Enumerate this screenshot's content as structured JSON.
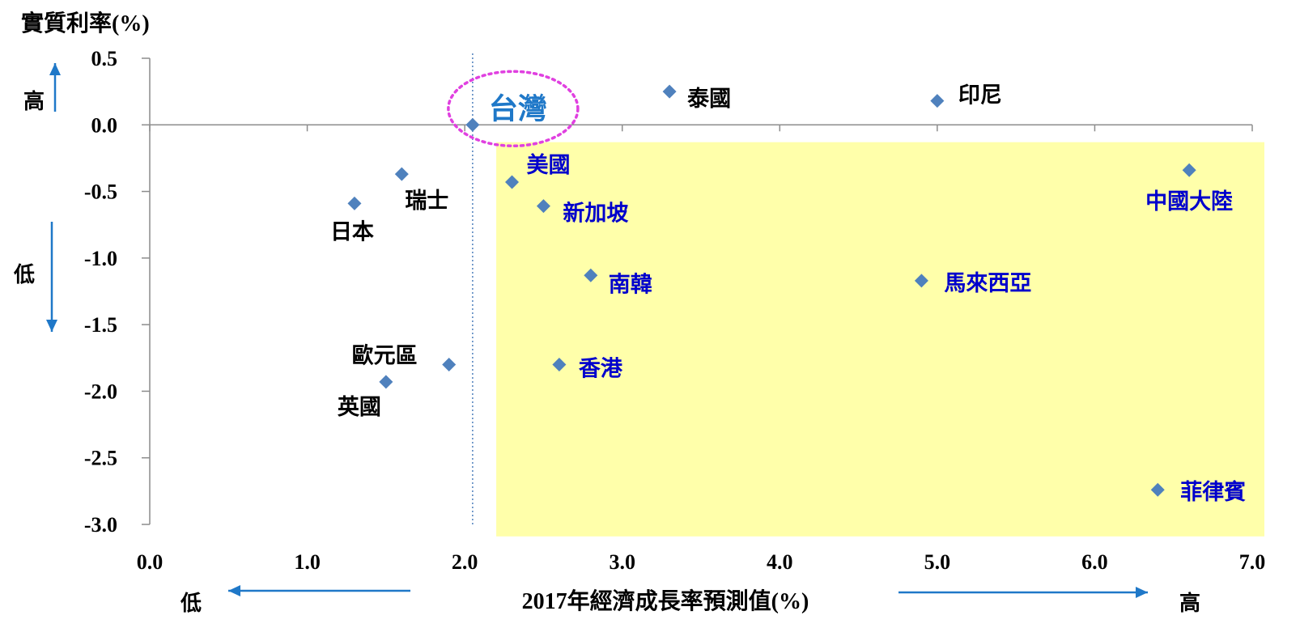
{
  "chart_data": {
    "type": "scatter",
    "title": "",
    "xlabel": "2017年經濟成長率預測值(%)",
    "ylabel": "實質利率(%)",
    "xlim": [
      0,
      7
    ],
    "ylim": [
      -3,
      0.5
    ],
    "xticks": [
      "0.0",
      "1.0",
      "2.0",
      "3.0",
      "4.0",
      "5.0",
      "6.0",
      "7.0"
    ],
    "yticks": [
      "0.5",
      "0.0",
      "-0.5",
      "-1.0",
      "-1.5",
      "-2.0",
      "-2.5",
      "-3.0"
    ],
    "grid": false,
    "reference_line_x": 2.05,
    "highlight_region": {
      "x": [
        2.2,
        7.1
      ],
      "y": [
        -3.09,
        -0.13
      ],
      "color": "#FFFFAA"
    },
    "marker_color": "#4F81BD",
    "points": [
      {
        "label": "台灣",
        "x": 2.05,
        "y": 0.0,
        "color": "#1F78C8",
        "highlight": true
      },
      {
        "label": "泰國",
        "x": 3.3,
        "y": 0.25,
        "color": "#000000"
      },
      {
        "label": "印尼",
        "x": 5.0,
        "y": 0.18,
        "color": "#000000"
      },
      {
        "label": "瑞士",
        "x": 1.6,
        "y": -0.37,
        "color": "#000000"
      },
      {
        "label": "日本",
        "x": 1.3,
        "y": -0.59,
        "color": "#000000"
      },
      {
        "label": "美國",
        "x": 2.3,
        "y": -0.43,
        "color": "#0000CC"
      },
      {
        "label": "新加坡",
        "x": 2.5,
        "y": -0.61,
        "color": "#0000CC"
      },
      {
        "label": "中國大陸",
        "x": 6.6,
        "y": -0.34,
        "color": "#0000CC"
      },
      {
        "label": "南韓",
        "x": 2.8,
        "y": -1.13,
        "color": "#0000CC"
      },
      {
        "label": "馬來西亞",
        "x": 4.9,
        "y": -1.17,
        "color": "#0000CC"
      },
      {
        "label": "歐元區",
        "x": 1.9,
        "y": -1.8,
        "color": "#000000"
      },
      {
        "label": "英國",
        "x": 1.5,
        "y": -1.93,
        "color": "#000000"
      },
      {
        "label": "香港",
        "x": 2.6,
        "y": -1.8,
        "color": "#0000CC"
      },
      {
        "label": "菲律賓",
        "x": 6.4,
        "y": -2.74,
        "color": "#0000CC"
      }
    ]
  },
  "indicators": {
    "y_high": "高",
    "y_low": "低",
    "x_low": "低",
    "x_high": "高",
    "color": "#1F78C8"
  },
  "highlight_circle_color": "#E040E0"
}
